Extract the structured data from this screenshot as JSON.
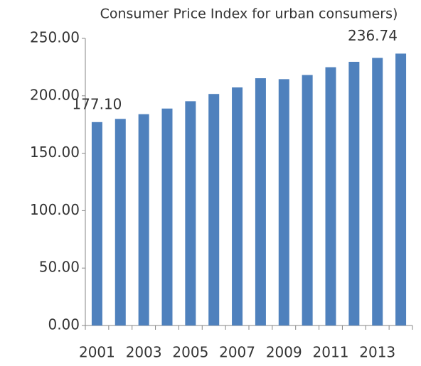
{
  "chart_data": {
    "type": "bar",
    "title": "Consumer Price Index for urban consumers)",
    "categories": [
      "2001",
      null,
      "2003",
      null,
      "2005",
      null,
      "2007",
      null,
      "2009",
      null,
      "2011",
      null,
      "2013",
      null
    ],
    "values": [
      177.1,
      179.9,
      184.0,
      188.9,
      195.3,
      201.6,
      207.3,
      215.3,
      214.5,
      218.1,
      224.9,
      229.6,
      233.0,
      236.74
    ],
    "value_labels": [
      "177.10",
      null,
      null,
      null,
      null,
      null,
      null,
      null,
      null,
      null,
      null,
      null,
      null,
      "236.74"
    ],
    "color": "#4f81bd",
    "ylim": [
      0,
      250
    ],
    "yticks": [
      {
        "value": 0,
        "label": "0.00"
      },
      {
        "value": 50,
        "label": "50.00"
      },
      {
        "value": 100,
        "label": "100.00"
      },
      {
        "value": 150,
        "label": "150.00"
      },
      {
        "value": 200,
        "label": "200.00"
      },
      {
        "value": 250,
        "label": "250.00"
      }
    ],
    "grid": false
  }
}
